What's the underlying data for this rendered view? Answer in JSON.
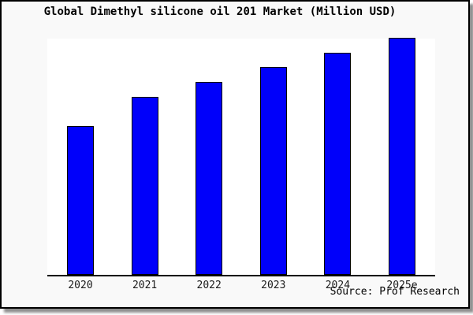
{
  "title": "Global Dimethyl silicone oil 201 Market (Million USD)",
  "source": "Source: Prof Research",
  "colors": {
    "bar_fill": "#0000fa",
    "bar_border": "#000000",
    "frame_background": "#f9f9f9",
    "plot_background": "#ffffff",
    "frame_border": "#000000"
  },
  "chart_data": {
    "type": "bar",
    "title": "Global Dimethyl silicone oil 201 Market (Million USD)",
    "categories": [
      "2020",
      "2021",
      "2022",
      "2023",
      "2024",
      "2025e"
    ],
    "values": [
      62.8,
      75.1,
      81.4,
      87.7,
      93.7,
      100.0
    ],
    "values_note": "relative heights (% of 2025e bar); y-axis has no ticks, gridlines or labels in the image",
    "xlabel": "",
    "ylabel": "",
    "ylim": [
      0,
      100
    ],
    "grid": false,
    "legend": false,
    "bar_color": "#0000fa",
    "source_caption": "Source: Prof Research"
  }
}
